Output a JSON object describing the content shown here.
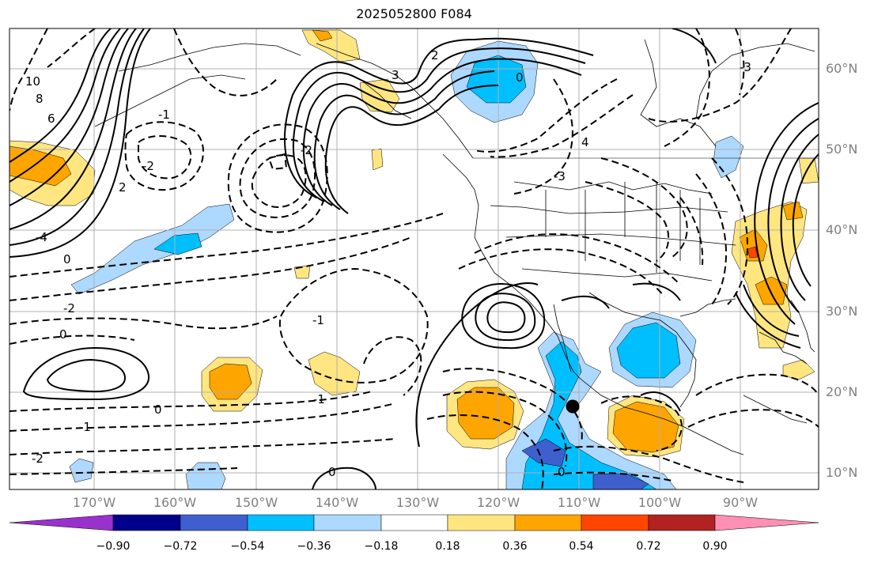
{
  "title": "2025052800 F084",
  "latitude_labels": [
    "60°N",
    "50°N",
    "40°N",
    "30°N",
    "20°N",
    "10°N"
  ],
  "longitude_labels": [
    "170°W",
    "160°W",
    "150°W",
    "140°W",
    "130°W",
    "120°W",
    "110°W",
    "100°W",
    "90°W"
  ],
  "colorbar": {
    "tick_labels": [
      "−0.90",
      "−0.72",
      "−0.54",
      "−0.36",
      "−0.18",
      "0.18",
      "0.36",
      "0.54",
      "0.72",
      "0.90"
    ],
    "colors": [
      "#9932cc",
      "#00008b",
      "#3f5fcf",
      "#00bfff",
      "#add8ff",
      "#ffffff",
      "#ffe680",
      "#ffa500",
      "#ff4500",
      "#b22222",
      "#ff8fb5"
    ]
  },
  "contour_labels": [
    "10",
    "8",
    "6",
    "2",
    "-2",
    "-1",
    "0",
    "-4",
    "-3",
    "3",
    "4",
    "2",
    "-2",
    "0",
    "-1",
    "0",
    "-2",
    "-1",
    "-2",
    "-1",
    "0",
    "0",
    "-3",
    "0"
  ],
  "marker": "black-dot",
  "shading_colors": {
    "light_blue": "#add8ff",
    "medium_blue": "#00bfff",
    "dark_blue": "#3f5fcf",
    "yellow": "#ffe680",
    "orange": "#ffa500",
    "red_orange": "#ff4500"
  }
}
